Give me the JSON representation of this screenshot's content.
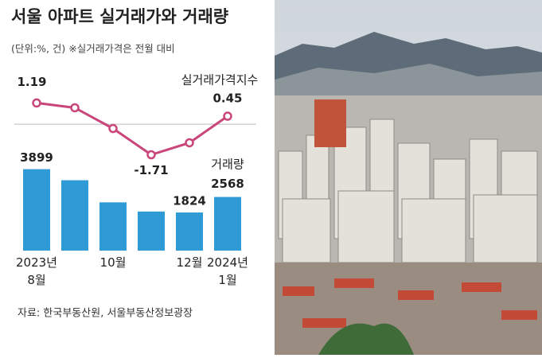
{
  "chart_data": {
    "type": "combo",
    "title": "서울 아파트 실거래가와 거래량",
    "subtitle": "(단위:%, 건) ※실거래가격은 전월 대비",
    "source": "자료: 한국부동산원, 서울부동산정보광장",
    "categories": [
      "2023년\n8월",
      null,
      "10월",
      null,
      "12월",
      "2024년\n1월"
    ],
    "ylim": [
      0,
      4000
    ],
    "y2lim": [
      -2.4,
      2.5
    ],
    "zero_line": true,
    "series": [
      {
        "name": "거래량",
        "type": "bar",
        "color": "#2e9bd6",
        "values": [
          3899,
          3370,
          2310,
          1870,
          1824,
          2568
        ],
        "value_labels": [
          "3899",
          null,
          null,
          null,
          "1824",
          "2568"
        ]
      },
      {
        "name": "실거래가격지수",
        "type": "line",
        "axis": "y2",
        "color": "#c9457a",
        "values": [
          1.19,
          0.92,
          -0.24,
          -1.71,
          -1.04,
          0.45
        ],
        "value_labels": [
          "1.19",
          null,
          null,
          "-1.71",
          null,
          "0.45"
        ]
      }
    ]
  }
}
